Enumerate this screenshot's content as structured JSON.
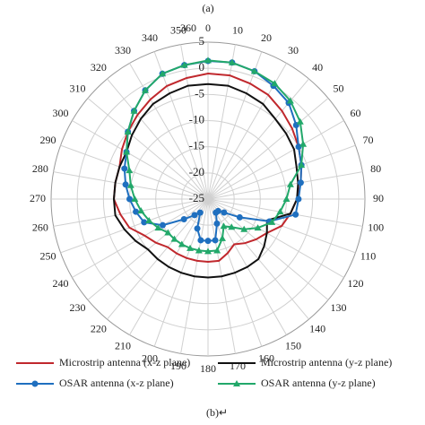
{
  "chart_data": {
    "type": "polar",
    "title": "(a)",
    "caption": "(b)↵",
    "x": [
      0,
      10,
      20,
      30,
      40,
      50,
      60,
      70,
      80,
      90,
      100,
      110,
      120,
      130,
      140,
      150,
      160,
      170,
      180,
      190,
      200,
      210,
      220,
      230,
      240,
      250,
      260,
      270,
      280,
      290,
      300,
      310,
      320,
      330,
      340,
      350
    ],
    "xlim": [
      0,
      360
    ],
    "xticks": [
      0,
      10,
      20,
      30,
      40,
      50,
      60,
      70,
      80,
      90,
      100,
      110,
      120,
      130,
      140,
      150,
      160,
      170,
      180,
      190,
      200,
      210,
      220,
      230,
      240,
      250,
      260,
      270,
      280,
      290,
      300,
      310,
      320,
      330,
      340,
      350,
      360
    ],
    "ylim": [
      -25,
      5
    ],
    "yticks": [
      -25,
      -20,
      -15,
      -10,
      -5,
      0,
      5
    ],
    "grid": true,
    "series": [
      {
        "name": "Microstrip antenna (x-z plane)",
        "color": "#c0282d",
        "marker": "none",
        "values": [
          -1,
          -1,
          -1.5,
          -2,
          -3,
          -4,
          -5,
          -6,
          -7,
          -8,
          -9,
          -10,
          -12,
          -13,
          -14,
          -15,
          -14,
          -13,
          -13,
          -13,
          -13,
          -13,
          -13,
          -12,
          -11,
          -9,
          -8,
          -7,
          -7,
          -7,
          -6,
          -5,
          -4,
          -3,
          -2,
          -1.5
        ]
      },
      {
        "name": "Microstrip antenna (y-z plane)",
        "color": "#111111",
        "marker": "none",
        "values": [
          -3,
          -3,
          -3.5,
          -4,
          -5,
          -5.5,
          -6,
          -7,
          -7.5,
          -8,
          -9,
          -13,
          -12,
          -11,
          -10,
          -10,
          -10,
          -10,
          -10,
          -10,
          -10,
          -10,
          -10,
          -10,
          -9,
          -8,
          -7,
          -7,
          -7,
          -7,
          -7,
          -6,
          -5,
          -4,
          -3.5,
          -3
        ]
      },
      {
        "name": "OSAR antenna (x-z plane)",
        "color": "#1f6fbf",
        "marker": "circle",
        "values": [
          1.4,
          1.5,
          1,
          0,
          -1,
          -3,
          -5,
          -6,
          -7,
          -7.7,
          -8,
          -12.5,
          -18,
          -21,
          -22,
          -22,
          -20,
          -17,
          -17,
          -17,
          -19,
          -22,
          -21,
          -19,
          -15,
          -12,
          -11,
          -10,
          -9,
          -8,
          -7,
          -5,
          -3,
          -1,
          0.5,
          1
        ]
      },
      {
        "name": "OSAR antenna (y-z plane)",
        "color": "#22a86a",
        "marker": "triangle",
        "values": [
          1.5,
          1.5,
          1,
          0.5,
          -0.5,
          -2,
          -4,
          -6,
          -9,
          -10,
          -11,
          -12,
          -14,
          -16,
          -18,
          -19,
          -17,
          -15,
          -15,
          -15,
          -15,
          -15,
          -15,
          -15,
          -14,
          -13,
          -12,
          -11,
          -10,
          -9,
          -7,
          -5,
          -3,
          -1,
          0.5,
          1
        ]
      }
    ]
  }
}
